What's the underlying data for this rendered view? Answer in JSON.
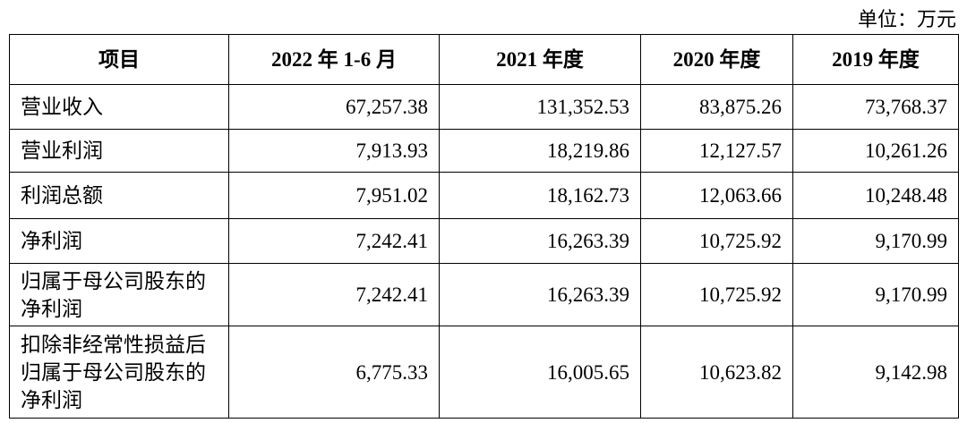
{
  "header": {
    "unit": "单位：万元"
  },
  "table": {
    "columns": [
      "项目",
      "2022 年 1-6 月",
      "2021 年度",
      "2020 年度",
      "2019 年度"
    ],
    "rows": [
      [
        "营业收入",
        "67,257.38",
        "131,352.53",
        "83,875.26",
        "73,768.37"
      ],
      [
        "营业利润",
        "7,913.93",
        "18,219.86",
        "12,127.57",
        "10,261.26"
      ],
      [
        "利润总额",
        "7,951.02",
        "18,162.73",
        "12,063.66",
        "10,248.48"
      ],
      [
        "净利润",
        "7,242.41",
        "16,263.39",
        "10,725.92",
        "9,170.99"
      ],
      [
        "归属于母公司股东的净利润",
        "7,242.41",
        "16,263.39",
        "10,725.92",
        "9,170.99"
      ],
      [
        "扣除非经常性损益后归属于母公司股东的净利润",
        "6,775.33",
        "16,005.65",
        "10,623.82",
        "9,142.98"
      ]
    ]
  }
}
